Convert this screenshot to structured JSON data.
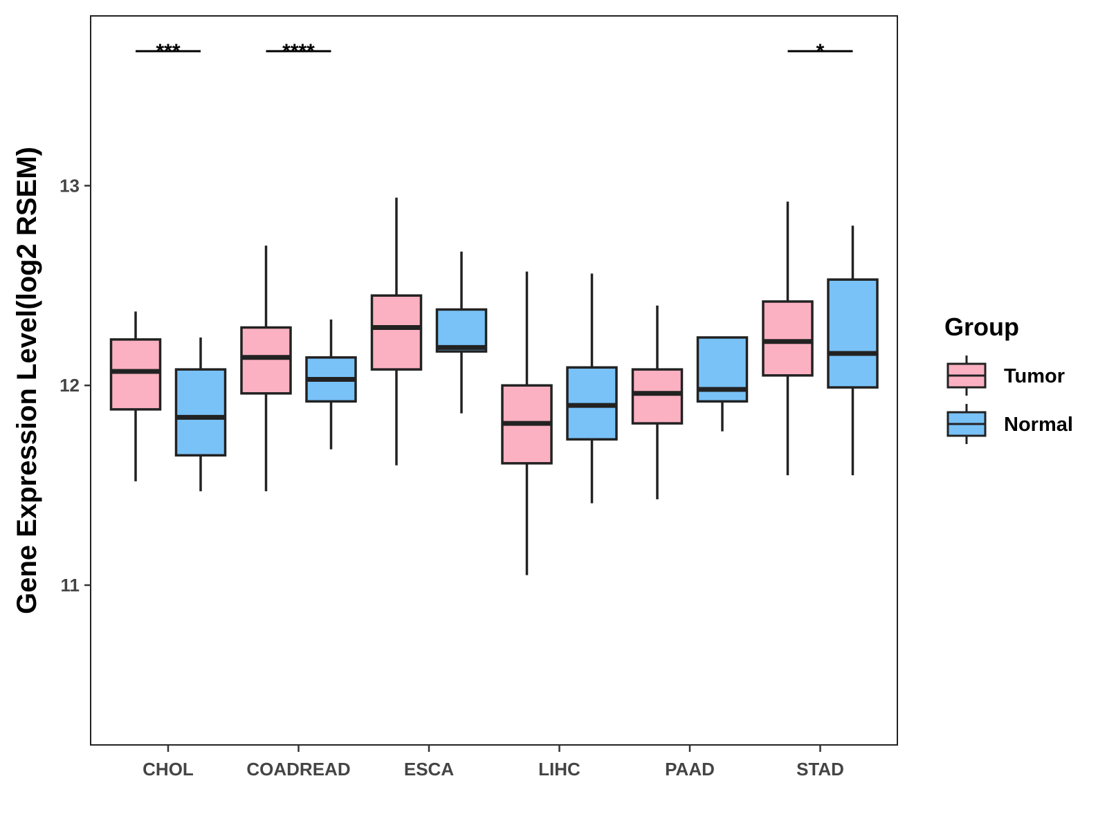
{
  "chart_data": {
    "type": "boxplot",
    "title": "",
    "xlabel": "",
    "ylabel": "Gene Expression Level(log2 RSEM)",
    "ylim": [
      10.2,
      13.85
    ],
    "yticks": [
      11,
      12,
      13
    ],
    "grid": false,
    "legend_position": "right",
    "legend_title": "Group",
    "categories": [
      "CHOL",
      "COADREAD",
      "ESCA",
      "LIHC",
      "PAAD",
      "STAD"
    ],
    "series": [
      {
        "name": "Tumor",
        "color": "#FBB1C1",
        "boxes": [
          {
            "whisker_low": 11.52,
            "q1": 11.88,
            "median": 12.07,
            "q3": 12.23,
            "whisker_high": 12.37
          },
          {
            "whisker_low": 11.47,
            "q1": 11.96,
            "median": 12.14,
            "q3": 12.29,
            "whisker_high": 12.7
          },
          {
            "whisker_low": 11.6,
            "q1": 12.08,
            "median": 12.29,
            "q3": 12.45,
            "whisker_high": 12.94
          },
          {
            "whisker_low": 11.05,
            "q1": 11.61,
            "median": 11.81,
            "q3": 12.0,
            "whisker_high": 12.57
          },
          {
            "whisker_low": 11.43,
            "q1": 11.81,
            "median": 11.96,
            "q3": 12.08,
            "whisker_high": 12.4
          },
          {
            "whisker_low": 11.55,
            "q1": 12.05,
            "median": 12.22,
            "q3": 12.42,
            "whisker_high": 12.92
          }
        ]
      },
      {
        "name": "Normal",
        "color": "#79C2F8",
        "boxes": [
          {
            "whisker_low": 11.47,
            "q1": 11.65,
            "median": 11.84,
            "q3": 12.08,
            "whisker_high": 12.24
          },
          {
            "whisker_low": 11.68,
            "q1": 11.92,
            "median": 12.03,
            "q3": 12.14,
            "whisker_high": 12.33
          },
          {
            "whisker_low": 11.86,
            "q1": 12.17,
            "median": 12.19,
            "q3": 12.38,
            "whisker_high": 12.67
          },
          {
            "whisker_low": 11.41,
            "q1": 11.73,
            "median": 11.9,
            "q3": 12.09,
            "whisker_high": 12.56
          },
          {
            "whisker_low": 11.77,
            "q1": 11.92,
            "median": 11.98,
            "q3": 12.24,
            "whisker_high": 12.24
          },
          {
            "whisker_low": 11.55,
            "q1": 11.99,
            "median": 12.16,
            "q3": 12.53,
            "whisker_high": 12.8
          }
        ]
      }
    ],
    "significance": [
      {
        "category": "CHOL",
        "label": "***"
      },
      {
        "category": "COADREAD",
        "label": "****"
      },
      {
        "category": "STAD",
        "label": "*"
      }
    ]
  }
}
